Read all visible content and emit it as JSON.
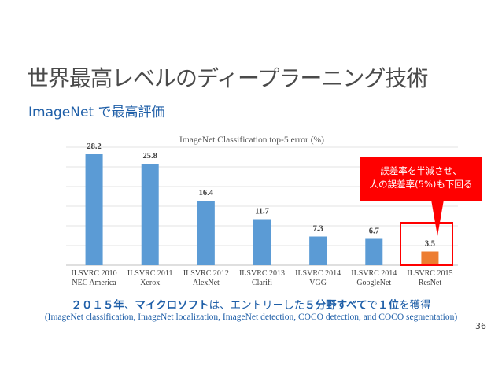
{
  "slide": {
    "title": "世界最高レベルのディープラーニング技術",
    "subtitle": "ImageNet で最高評価",
    "summary": {
      "part1": "２０１５年",
      "part2": "、",
      "part3": "マイクロソフト",
      "part4": "は、エントリーした",
      "part5": "５分野すべて",
      "part6": "で",
      "part7": "１位",
      "part8": "を獲得"
    },
    "detail": "(ImageNet classification, ImageNet localization, ImageNet detection, COCO detection, and COCO segmentation)",
    "page_number": "36",
    "callout": {
      "line1": "誤差率を半減させ、",
      "line2": "人の誤差率(5%)も下回る"
    }
  },
  "colors": {
    "bar_default": "#5b9bd5",
    "bar_highlight": "#ed7d31",
    "callout": "#ff0000",
    "accent_text": "#1f5fa8"
  },
  "chart_data": {
    "type": "bar",
    "title": "ImageNet Classification top-5 error (%)",
    "categories": [
      [
        "ILSVRC 2010",
        "NEC America"
      ],
      [
        "ILSVRC 2011",
        "Xerox"
      ],
      [
        "ILSVRC 2012",
        "AlexNet"
      ],
      [
        "ILSVRC 2013",
        "Clarifi"
      ],
      [
        "ILSVRC 2014",
        "VGG"
      ],
      [
        "ILSVRC 2014",
        "GoogleNet"
      ],
      [
        "ILSVRC 2015",
        "ResNet"
      ]
    ],
    "values": [
      28.2,
      25.8,
      16.4,
      11.7,
      7.3,
      6.7,
      3.5
    ],
    "data_labels": [
      "28.2",
      "25.8",
      "16.4",
      "11.7",
      "7.3",
      "6.7",
      "3.5"
    ],
    "highlight_index": 6,
    "ylim": [
      0,
      30
    ],
    "grid": true,
    "legend": "none"
  }
}
